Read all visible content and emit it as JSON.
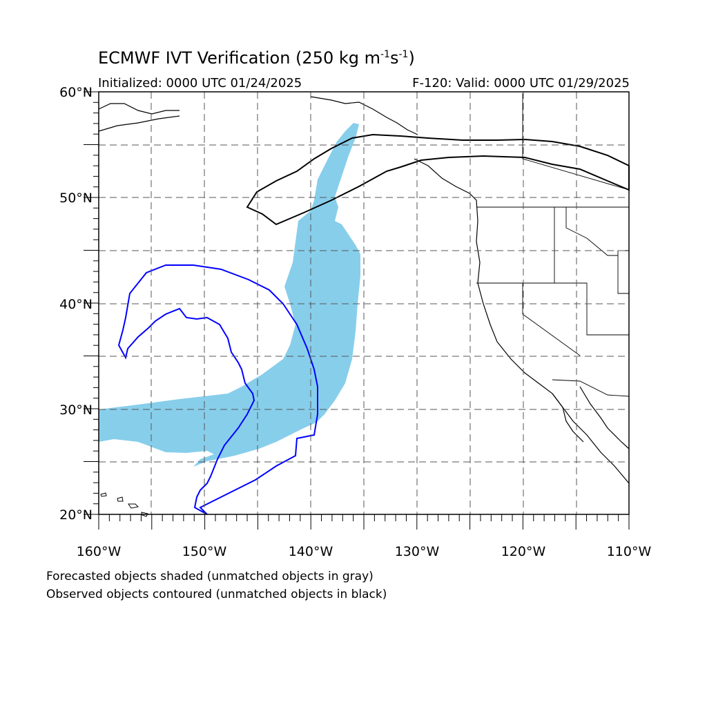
{
  "title": {
    "main": "ECMWF IVT Verification (250 kg m",
    "exp1": "-1",
    "mid": "s",
    "exp2": "-1",
    "end": ")"
  },
  "subtitle": {
    "left": "Initialized: 0000 UTC 01/24/2025",
    "right": "F-120: Valid: 0000 UTC 01/29/2025"
  },
  "footer": {
    "line1": "Forecasted objects shaded (unmatched objects in gray)",
    "line2": "Observed objects contoured (unmatched objects in black)"
  },
  "map": {
    "lon_range": [
      -160,
      -110
    ],
    "lat_range": [
      20,
      60
    ],
    "grid_dashed": true,
    "lat_labels": [
      "20°N",
      "30°N",
      "40°N",
      "50°N",
      "60°N"
    ],
    "lon_labels": [
      "160°W",
      "150°W",
      "140°W",
      "130°W",
      "120°W",
      "110°W"
    ],
    "colors": {
      "forecast_fill": "#87ceeb",
      "observed_matched": "#0000ff",
      "observed_unmatched": "#000000",
      "coast": "#000000",
      "grid": "#555555"
    }
  }
}
